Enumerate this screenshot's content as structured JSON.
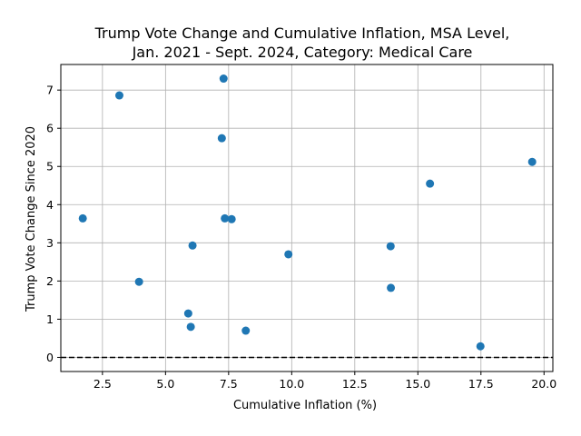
{
  "chart_data": {
    "type": "scatter",
    "title_line1": "Trump Vote Change and Cumulative Inflation, MSA Level,",
    "title_line2": "Jan. 2021 - Sept. 2024, Category: Medical Care",
    "xlabel": "Cumulative Inflation (%)",
    "ylabel": "Trump Vote Change Since 2020",
    "xlim": [
      0.85,
      20.35
    ],
    "ylim": [
      -0.37,
      7.67
    ],
    "grid": true,
    "x_ticks": [
      2.5,
      5.0,
      7.5,
      10.0,
      12.5,
      15.0,
      17.5,
      20.0
    ],
    "x_tick_labels": [
      "2.5",
      "5.0",
      "7.5",
      "10.0",
      "12.5",
      "15.0",
      "17.5",
      "20.0"
    ],
    "y_ticks": [
      0,
      1,
      2,
      3,
      4,
      5,
      6,
      7
    ],
    "y_tick_labels": [
      "0",
      "1",
      "2",
      "3",
      "4",
      "5",
      "6",
      "7"
    ],
    "reference_line": {
      "y": 0,
      "style": "dashed",
      "color": "#000000"
    },
    "point_color": "#1f77b4",
    "points": [
      {
        "x": 1.72,
        "y": 3.64
      },
      {
        "x": 3.17,
        "y": 6.86
      },
      {
        "x": 3.95,
        "y": 1.98
      },
      {
        "x": 5.9,
        "y": 1.15
      },
      {
        "x": 6.0,
        "y": 0.8
      },
      {
        "x": 6.07,
        "y": 2.93
      },
      {
        "x": 7.23,
        "y": 5.74
      },
      {
        "x": 7.3,
        "y": 7.3
      },
      {
        "x": 7.35,
        "y": 3.64
      },
      {
        "x": 7.62,
        "y": 3.62
      },
      {
        "x": 8.18,
        "y": 0.7
      },
      {
        "x": 9.87,
        "y": 2.7
      },
      {
        "x": 13.92,
        "y": 2.91
      },
      {
        "x": 13.93,
        "y": 1.82
      },
      {
        "x": 15.48,
        "y": 4.55
      },
      {
        "x": 17.48,
        "y": 0.29
      },
      {
        "x": 19.53,
        "y": 5.12
      }
    ]
  }
}
